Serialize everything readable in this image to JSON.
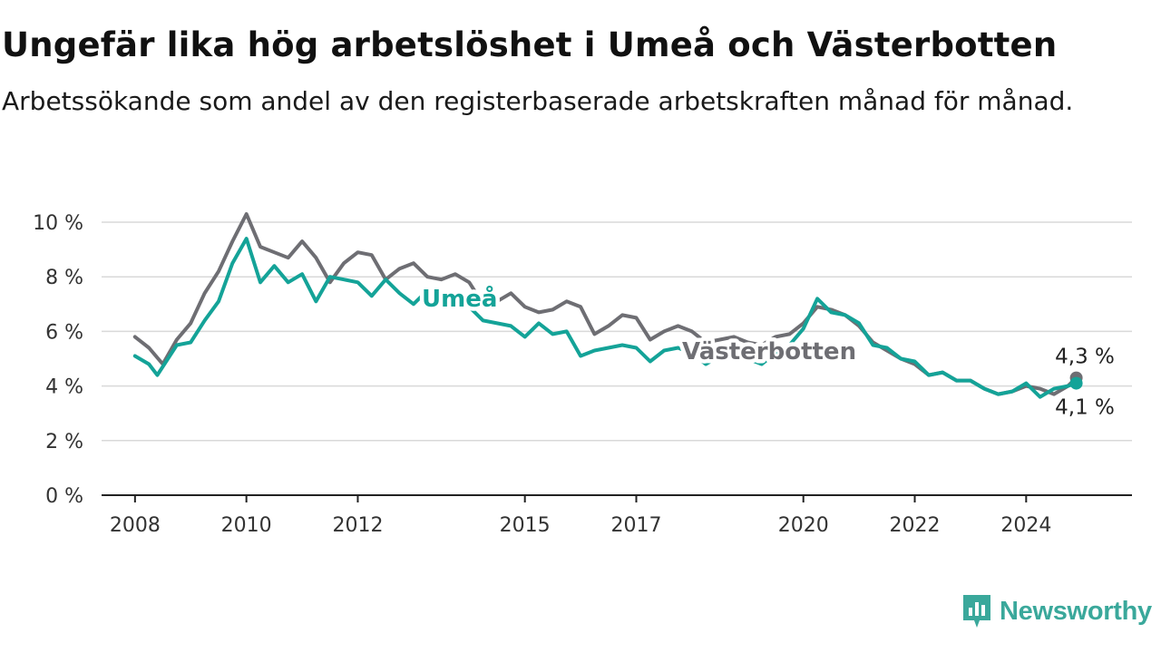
{
  "title": "Ungefär lika hög arbetslöshet i Umeå och Västerbotten",
  "subtitle": "Arbetssökande som andel av den registerbaserade arbetskraften månad för månad.",
  "brand": {
    "name": "Newsworthy",
    "color": "#3aa89b",
    "icon": "newsworthy-logo-icon"
  },
  "chart_data": {
    "type": "line",
    "ylim": [
      0,
      10.5
    ],
    "xlim": [
      2007.4,
      2025.9
    ],
    "y_ticks": [
      0,
      2,
      4,
      6,
      8,
      10
    ],
    "y_tick_labels": [
      "0 %",
      "2 %",
      "4 %",
      "6 %",
      "8 %",
      "10 %"
    ],
    "x_ticks": [
      2008,
      2010,
      2012,
      2015,
      2017,
      2020,
      2022,
      2024
    ],
    "x_tick_labels": [
      "2008",
      "2010",
      "2012",
      "2015",
      "2017",
      "2020",
      "2022",
      "2024"
    ],
    "grid": "horizontal",
    "legend": "inline",
    "series": [
      {
        "name": "Västerbotten",
        "color": "#6e6e73",
        "end_label": "4,3 %",
        "points": [
          [
            2008.0,
            5.8
          ],
          [
            2008.25,
            5.4
          ],
          [
            2008.5,
            4.8
          ],
          [
            2008.75,
            5.7
          ],
          [
            2009.0,
            6.3
          ],
          [
            2009.25,
            7.4
          ],
          [
            2009.5,
            8.2
          ],
          [
            2009.75,
            9.3
          ],
          [
            2010.0,
            10.3
          ],
          [
            2010.25,
            9.1
          ],
          [
            2010.5,
            8.9
          ],
          [
            2010.75,
            8.7
          ],
          [
            2011.0,
            9.3
          ],
          [
            2011.25,
            8.7
          ],
          [
            2011.5,
            7.8
          ],
          [
            2011.75,
            8.5
          ],
          [
            2012.0,
            8.9
          ],
          [
            2012.25,
            8.8
          ],
          [
            2012.5,
            7.9
          ],
          [
            2012.75,
            8.3
          ],
          [
            2013.0,
            8.5
          ],
          [
            2013.25,
            8.0
          ],
          [
            2013.5,
            7.9
          ],
          [
            2013.75,
            8.1
          ],
          [
            2014.0,
            7.8
          ],
          [
            2014.25,
            7.0
          ],
          [
            2014.5,
            7.1
          ],
          [
            2014.75,
            7.4
          ],
          [
            2015.0,
            6.9
          ],
          [
            2015.25,
            6.7
          ],
          [
            2015.5,
            6.8
          ],
          [
            2015.75,
            7.1
          ],
          [
            2016.0,
            6.9
          ],
          [
            2016.25,
            5.9
          ],
          [
            2016.5,
            6.2
          ],
          [
            2016.75,
            6.6
          ],
          [
            2017.0,
            6.5
          ],
          [
            2017.25,
            5.7
          ],
          [
            2017.5,
            6.0
          ],
          [
            2017.75,
            6.2
          ],
          [
            2018.0,
            6.0
          ],
          [
            2018.25,
            5.6
          ],
          [
            2018.5,
            5.7
          ],
          [
            2018.75,
            5.8
          ],
          [
            2019.0,
            5.6
          ],
          [
            2019.25,
            5.5
          ],
          [
            2019.5,
            5.8
          ],
          [
            2019.75,
            5.9
          ],
          [
            2020.0,
            6.3
          ],
          [
            2020.25,
            6.9
          ],
          [
            2020.5,
            6.8
          ],
          [
            2020.75,
            6.6
          ],
          [
            2021.0,
            6.2
          ],
          [
            2021.25,
            5.6
          ],
          [
            2021.5,
            5.3
          ],
          [
            2021.75,
            5.0
          ],
          [
            2022.0,
            4.8
          ],
          [
            2022.25,
            4.4
          ],
          [
            2022.5,
            4.5
          ],
          [
            2022.75,
            4.2
          ],
          [
            2023.0,
            4.2
          ],
          [
            2023.25,
            3.9
          ],
          [
            2023.5,
            3.7
          ],
          [
            2023.75,
            3.8
          ],
          [
            2024.0,
            4.0
          ],
          [
            2024.25,
            3.9
          ],
          [
            2024.5,
            3.7
          ],
          [
            2024.75,
            4.0
          ],
          [
            2024.9,
            4.3
          ]
        ]
      },
      {
        "name": "Umeå",
        "color": "#14a398",
        "end_label": "4,1 %",
        "points": [
          [
            2008.0,
            5.1
          ],
          [
            2008.25,
            4.8
          ],
          [
            2008.4,
            4.4
          ],
          [
            2008.75,
            5.5
          ],
          [
            2009.0,
            5.6
          ],
          [
            2009.25,
            6.4
          ],
          [
            2009.5,
            7.1
          ],
          [
            2009.75,
            8.5
          ],
          [
            2010.0,
            9.4
          ],
          [
            2010.25,
            7.8
          ],
          [
            2010.5,
            8.4
          ],
          [
            2010.75,
            7.8
          ],
          [
            2011.0,
            8.1
          ],
          [
            2011.25,
            7.1
          ],
          [
            2011.5,
            8.0
          ],
          [
            2011.75,
            7.9
          ],
          [
            2012.0,
            7.8
          ],
          [
            2012.25,
            7.3
          ],
          [
            2012.5,
            7.9
          ],
          [
            2012.75,
            7.4
          ],
          [
            2013.0,
            7.0
          ],
          [
            2013.25,
            7.5
          ],
          [
            2013.5,
            7.0
          ],
          [
            2013.75,
            7.2
          ],
          [
            2014.0,
            6.9
          ],
          [
            2014.25,
            6.4
          ],
          [
            2014.5,
            6.3
          ],
          [
            2014.75,
            6.2
          ],
          [
            2015.0,
            5.8
          ],
          [
            2015.25,
            6.3
          ],
          [
            2015.5,
            5.9
          ],
          [
            2015.75,
            6.0
          ],
          [
            2016.0,
            5.1
          ],
          [
            2016.25,
            5.3
          ],
          [
            2016.5,
            5.4
          ],
          [
            2016.75,
            5.5
          ],
          [
            2017.0,
            5.4
          ],
          [
            2017.25,
            4.9
          ],
          [
            2017.5,
            5.3
          ],
          [
            2017.75,
            5.4
          ],
          [
            2018.0,
            5.2
          ],
          [
            2018.25,
            4.8
          ],
          [
            2018.5,
            5.1
          ],
          [
            2018.75,
            5.3
          ],
          [
            2019.0,
            5.0
          ],
          [
            2019.25,
            4.8
          ],
          [
            2019.5,
            5.2
          ],
          [
            2019.75,
            5.5
          ],
          [
            2020.0,
            6.1
          ],
          [
            2020.25,
            7.2
          ],
          [
            2020.5,
            6.7
          ],
          [
            2020.75,
            6.6
          ],
          [
            2021.0,
            6.3
          ],
          [
            2021.25,
            5.5
          ],
          [
            2021.5,
            5.4
          ],
          [
            2021.75,
            5.0
          ],
          [
            2022.0,
            4.9
          ],
          [
            2022.25,
            4.4
          ],
          [
            2022.5,
            4.5
          ],
          [
            2022.75,
            4.2
          ],
          [
            2023.0,
            4.2
          ],
          [
            2023.25,
            3.9
          ],
          [
            2023.5,
            3.7
          ],
          [
            2023.75,
            3.8
          ],
          [
            2024.0,
            4.1
          ],
          [
            2024.25,
            3.6
          ],
          [
            2024.5,
            3.9
          ],
          [
            2024.75,
            4.0
          ],
          [
            2024.9,
            4.1
          ]
        ]
      }
    ]
  }
}
